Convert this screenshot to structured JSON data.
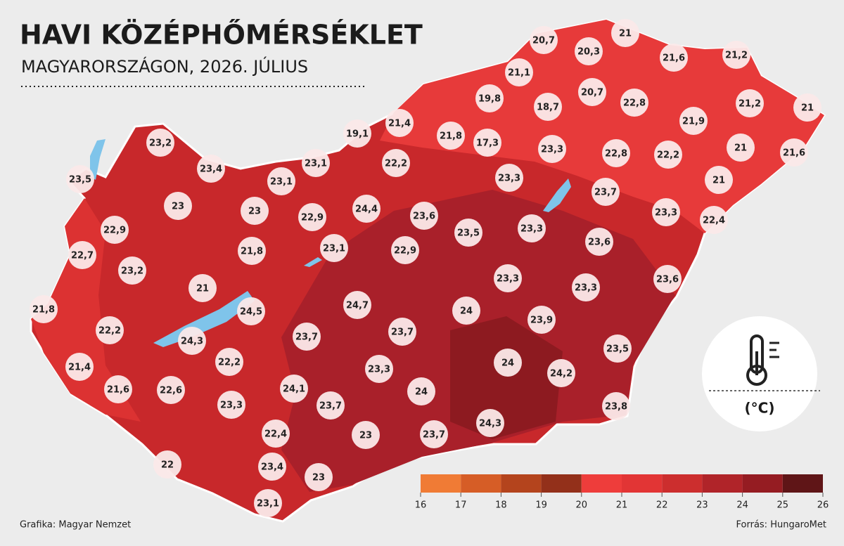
{
  "header": {
    "title": "HAVI KÖZÉPHŐMÉRSÉKLET",
    "subtitle": "MAGYARORSZÁGON, 2026. JÚLIUS"
  },
  "stations": [
    "20,7",
    "21",
    "20,3",
    "21,6",
    "21,2",
    "21,1",
    "19,8",
    "18,7",
    "20,7",
    "22,8",
    "21,2",
    "21",
    "21,4",
    "19,1",
    "21,8",
    "17,3",
    "21,9",
    "23,3",
    "22,8",
    "22,2",
    "21",
    "21,6",
    "23,2",
    "23,4",
    "23,5",
    "23,1",
    "22,2",
    "23,1",
    "23,3",
    "21",
    "23,7",
    "23",
    "23",
    "22,9",
    "24,4",
    "23,6",
    "23,3",
    "22,4",
    "22,9",
    "23,5",
    "23,3",
    "22,7",
    "21,8",
    "23,1",
    "22,9",
    "23,6",
    "23,2",
    "23,3",
    "23,6",
    "21",
    "23,3",
    "21,8",
    "24,5",
    "24,7",
    "24",
    "23,9",
    "22,2",
    "24,3",
    "23,7",
    "23,7",
    "23,5",
    "21,4",
    "22,2",
    "23,3",
    "24",
    "24,2",
    "21,6",
    "22,6",
    "24,1",
    "24",
    "23,3",
    "23,7",
    "23,8",
    "22,4",
    "23",
    "23,7",
    "24,3",
    "22",
    "23,4",
    "23",
    "23,1"
  ],
  "legend": {
    "unit": "(°C)",
    "ticks": [
      16,
      17,
      18,
      19,
      20,
      21,
      22,
      23,
      24,
      25,
      26
    ],
    "colors": [
      "#f07b35",
      "#d65d26",
      "#b4441d",
      "#93301a",
      "#ee3d3b",
      "#e23535",
      "#cc2e2e",
      "#b02429",
      "#951c22",
      "#5f1517"
    ]
  },
  "footer": {
    "credit": "Grafika: Magyar Nemzet",
    "source": "Forrás: HungaroMet"
  }
}
